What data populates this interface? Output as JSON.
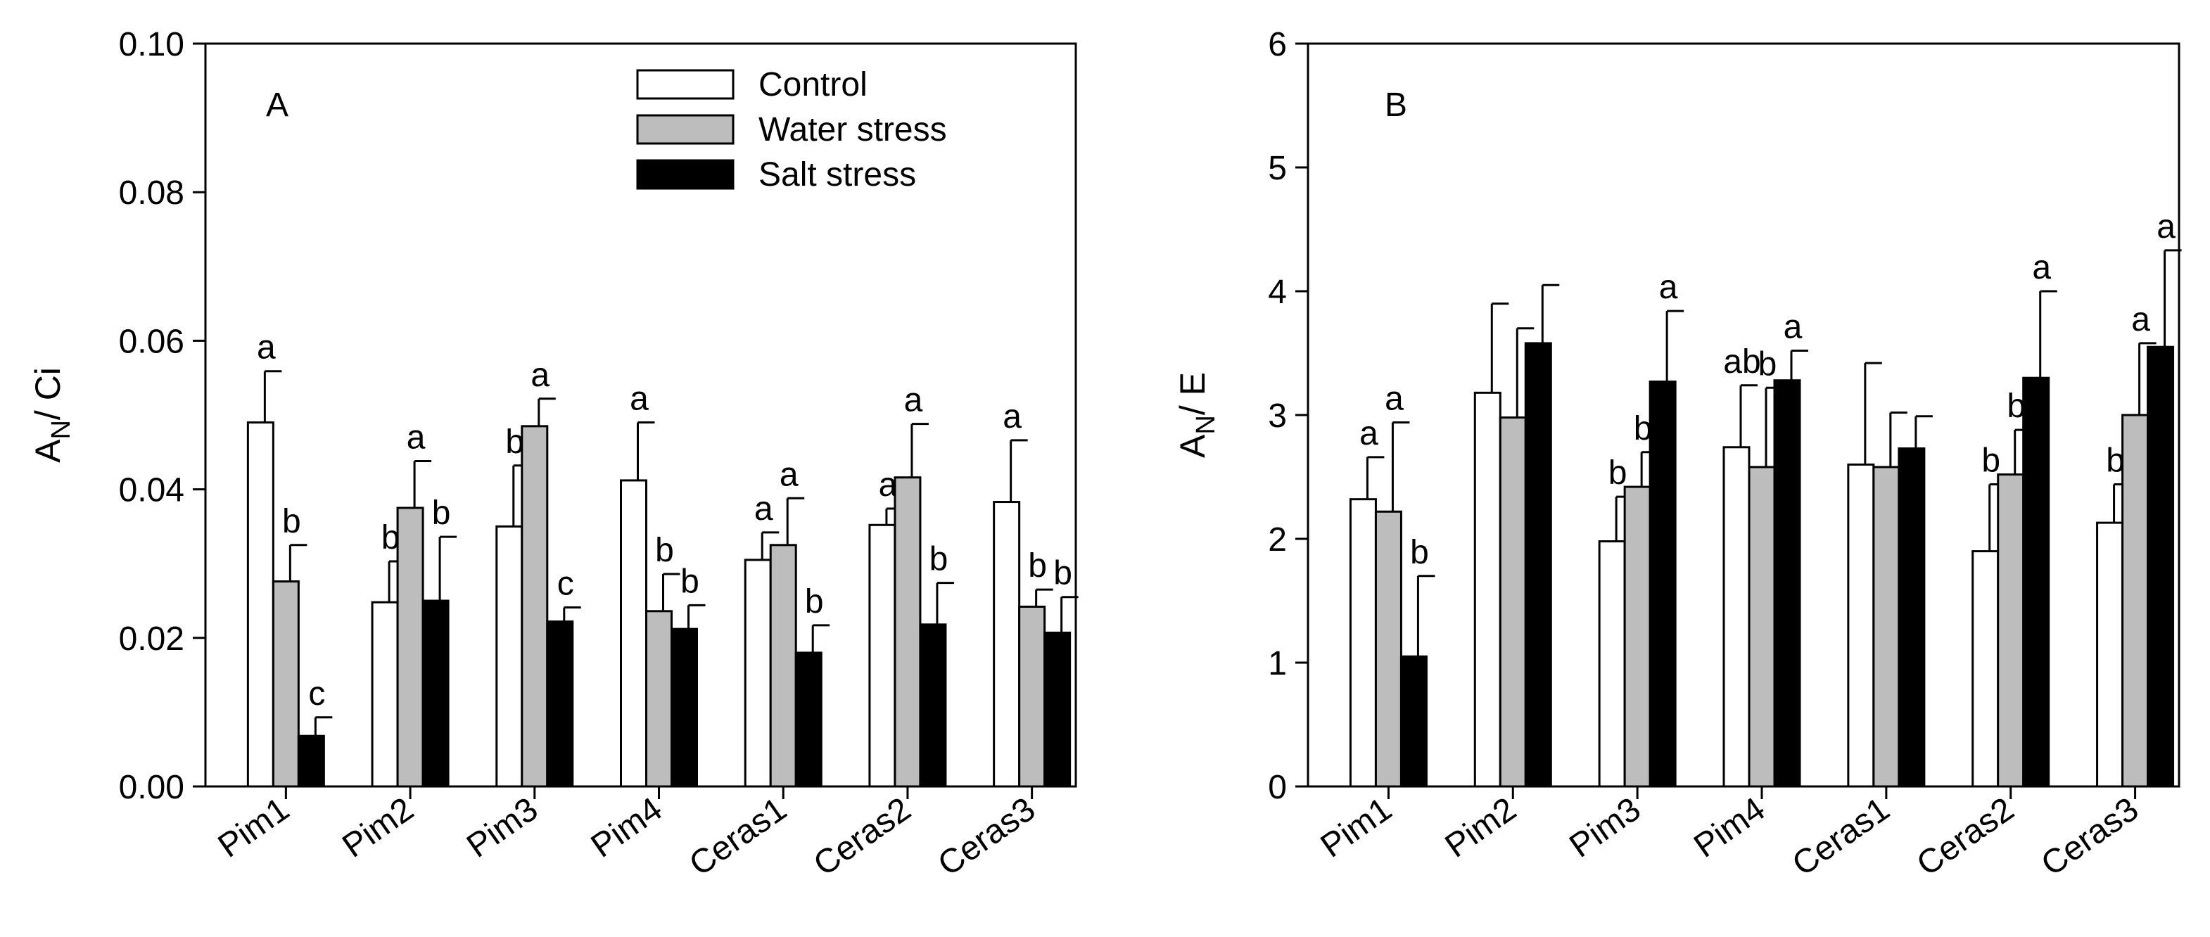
{
  "chart_data": [
    {
      "type": "bar",
      "panel_label": "A",
      "ylabel_main": "A",
      "ylabel_sub": "N",
      "ylabel_rest": "/ Ci",
      "ylim": [
        0,
        0.1
      ],
      "yticks": [
        "0.00",
        "0.02",
        "0.04",
        "0.06",
        "0.08",
        "0.10"
      ],
      "yticks_values": [
        0,
        0.02,
        0.04,
        0.06,
        0.08,
        0.1
      ],
      "categories": [
        "Pim1",
        "Pim2",
        "Pim3",
        "Pim4",
        "Ceras1",
        "Ceras2",
        "Ceras3"
      ],
      "legend": [
        "Control",
        "Water stress",
        "Salt stress"
      ],
      "legend_position": "top-right",
      "series": [
        {
          "name": "Control",
          "color": "#ffffff",
          "values": [
            0.049,
            0.0248,
            0.035,
            0.0412,
            0.0305,
            0.0352,
            0.0383
          ],
          "errors": [
            0.0069,
            0.0055,
            0.0082,
            0.0078,
            0.0037,
            0.0022,
            0.0083
          ],
          "letters": [
            "a",
            "b",
            "b",
            "a",
            "a",
            "a",
            "a"
          ]
        },
        {
          "name": "Water stress",
          "color": "#bdbdbd",
          "values": [
            0.0276,
            0.0375,
            0.0485,
            0.0236,
            0.0325,
            0.0416,
            0.0242
          ],
          "errors": [
            0.0049,
            0.0063,
            0.0037,
            0.005,
            0.0063,
            0.0072,
            0.0023
          ],
          "letters": [
            "b",
            "a",
            "a",
            "b",
            "a",
            "a",
            "b"
          ]
        },
        {
          "name": "Salt stress",
          "color": "#000000",
          "values": [
            0.0068,
            0.025,
            0.0222,
            0.0212,
            0.018,
            0.0218,
            0.0207
          ],
          "errors": [
            0.0025,
            0.0086,
            0.0019,
            0.0032,
            0.0037,
            0.0056,
            0.0048
          ],
          "letters": [
            "c",
            "b",
            "c",
            "b",
            "b",
            "b",
            "b"
          ]
        }
      ]
    },
    {
      "type": "bar",
      "panel_label": "B",
      "ylabel_main": "A",
      "ylabel_sub": "N",
      "ylabel_rest": "/ E",
      "ylim": [
        0,
        6
      ],
      "yticks": [
        "0",
        "1",
        "2",
        "3",
        "4",
        "5",
        "6"
      ],
      "yticks_values": [
        0,
        1,
        2,
        3,
        4,
        5,
        6
      ],
      "categories": [
        "Pim1",
        "Pim2",
        "Pim3",
        "Pim4",
        "Ceras1",
        "Ceras2",
        "Ceras3"
      ],
      "series": [
        {
          "name": "Control",
          "color": "#ffffff",
          "values": [
            2.32,
            3.18,
            1.98,
            2.74,
            2.6,
            1.9,
            2.13
          ],
          "errors": [
            0.34,
            0.72,
            0.36,
            0.5,
            0.82,
            0.54,
            0.31
          ],
          "letters": [
            "a",
            "",
            "b",
            "ab",
            "",
            "b",
            "b"
          ]
        },
        {
          "name": "Water stress",
          "color": "#bdbdbd",
          "values": [
            2.22,
            2.98,
            2.42,
            2.58,
            2.58,
            2.52,
            3.0
          ],
          "errors": [
            0.72,
            0.72,
            0.28,
            0.64,
            0.44,
            0.36,
            0.58
          ],
          "letters": [
            "a",
            "",
            "b",
            "b",
            "",
            "b",
            "a"
          ]
        },
        {
          "name": "Salt stress",
          "color": "#000000",
          "values": [
            1.05,
            3.58,
            3.27,
            3.28,
            2.73,
            3.3,
            3.55
          ],
          "errors": [
            0.65,
            0.47,
            0.57,
            0.24,
            0.26,
            0.7,
            0.78
          ],
          "letters": [
            "b",
            "",
            "a",
            "a",
            "",
            "a",
            "a"
          ]
        }
      ]
    }
  ]
}
